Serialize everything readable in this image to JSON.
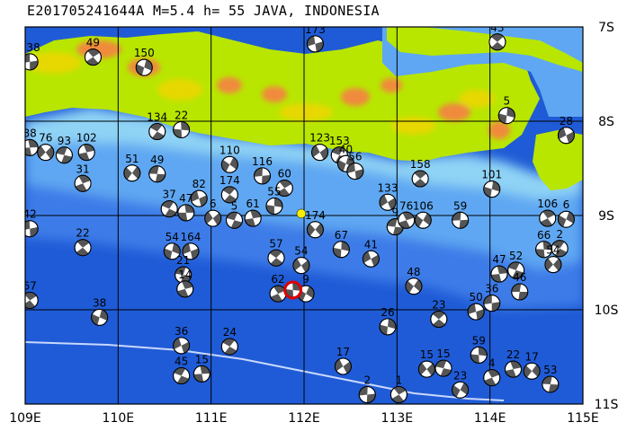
{
  "title": "E201705241644A M=5.4 h= 55 JAVA, INDONESIA",
  "lon_ticks": [
    "109E",
    "110E",
    "111E",
    "112E",
    "113E",
    "114E",
    "115E"
  ],
  "lat_ticks": [
    "7S",
    "8S",
    "9S",
    "10S",
    "11S"
  ],
  "lon_range": [
    109,
    115
  ],
  "lat_range": [
    -7,
    -11
  ],
  "colors": {
    "deep_ocean": "#1f5bd6",
    "mid_ocean": "#3c7ce8",
    "shelf": "#5fa7f2",
    "coast": "#8fd3f5",
    "land_low": "#b8e600",
    "land_mid": "#e6d800",
    "land_high": "#f08a3c",
    "trench_line": "#c9d8ff",
    "mainshock": "#e00000",
    "epicenter": "#ffee00"
  },
  "mainshock": {
    "lon": 111.88,
    "lat": -9.79
  },
  "epicenter": {
    "lon": 111.97,
    "lat": -8.98
  },
  "events": [
    {
      "label": "138",
      "lon": 109.05,
      "lat": -7.37
    },
    {
      "label": "49",
      "lon": 109.73,
      "lat": -7.32
    },
    {
      "label": "150",
      "lon": 110.28,
      "lat": -7.43
    },
    {
      "label": "173",
      "lon": 112.12,
      "lat": -7.18
    },
    {
      "label": "43",
      "lon": 114.08,
      "lat": -7.16
    },
    {
      "label": "5",
      "lon": 114.18,
      "lat": -7.94
    },
    {
      "label": "28",
      "lon": 114.82,
      "lat": -8.15
    },
    {
      "label": "134",
      "lon": 110.42,
      "lat": -8.11
    },
    {
      "label": "22",
      "lon": 110.68,
      "lat": -8.09
    },
    {
      "label": "123",
      "lon": 112.17,
      "lat": -8.33
    },
    {
      "label": "153",
      "lon": 112.38,
      "lat": -8.36
    },
    {
      "label": "88",
      "lon": 109.05,
      "lat": -8.28
    },
    {
      "label": "76",
      "lon": 109.22,
      "lat": -8.33
    },
    {
      "label": "93",
      "lon": 109.42,
      "lat": -8.36
    },
    {
      "label": "102",
      "lon": 109.66,
      "lat": -8.33
    },
    {
      "label": "51",
      "lon": 110.15,
      "lat": -8.55
    },
    {
      "label": "49",
      "lon": 110.42,
      "lat": -8.56
    },
    {
      "label": "31",
      "lon": 109.62,
      "lat": -8.66
    },
    {
      "label": "110",
      "lon": 111.2,
      "lat": -8.46
    },
    {
      "label": "116",
      "lon": 111.55,
      "lat": -8.58
    },
    {
      "label": "60",
      "lon": 111.79,
      "lat": -8.71
    },
    {
      "label": "40",
      "lon": 112.45,
      "lat": -8.45
    },
    {
      "label": "56",
      "lon": 112.55,
      "lat": -8.53
    },
    {
      "label": "158",
      "lon": 113.25,
      "lat": -8.61
    },
    {
      "label": "101",
      "lon": 114.02,
      "lat": -8.72
    },
    {
      "label": "82",
      "lon": 110.87,
      "lat": -8.82
    },
    {
      "label": "174",
      "lon": 111.2,
      "lat": -8.78
    },
    {
      "label": "55",
      "lon": 111.68,
      "lat": -8.9
    },
    {
      "label": "133",
      "lon": 112.9,
      "lat": -8.86
    },
    {
      "label": "37",
      "lon": 110.55,
      "lat": -8.93
    },
    {
      "label": "47",
      "lon": 110.73,
      "lat": -8.97
    },
    {
      "label": "6",
      "lon": 111.02,
      "lat": -9.03
    },
    {
      "label": "5",
      "lon": 111.25,
      "lat": -9.05
    },
    {
      "label": "61",
      "lon": 111.45,
      "lat": -9.03
    },
    {
      "label": "174",
      "lon": 112.12,
      "lat": -9.15
    },
    {
      "label": "9",
      "lon": 112.98,
      "lat": -9.12
    },
    {
      "label": "76",
      "lon": 113.1,
      "lat": -9.05
    },
    {
      "label": "106",
      "lon": 113.28,
      "lat": -9.05
    },
    {
      "label": "59",
      "lon": 113.68,
      "lat": -9.05
    },
    {
      "label": "106",
      "lon": 114.62,
      "lat": -9.03
    },
    {
      "label": "6",
      "lon": 114.82,
      "lat": -9.04
    },
    {
      "label": "42",
      "lon": 109.05,
      "lat": -9.14
    },
    {
      "label": "22",
      "lon": 109.62,
      "lat": -9.34
    },
    {
      "label": "54",
      "lon": 110.58,
      "lat": -9.38
    },
    {
      "label": "164",
      "lon": 110.78,
      "lat": -9.38
    },
    {
      "label": "57",
      "lon": 111.7,
      "lat": -9.45
    },
    {
      "label": "67",
      "lon": 112.4,
      "lat": -9.36
    },
    {
      "label": "41",
      "lon": 112.72,
      "lat": -9.46
    },
    {
      "label": "2",
      "lon": 114.75,
      "lat": -9.35
    },
    {
      "label": "66",
      "lon": 114.58,
      "lat": -9.36
    },
    {
      "label": "54",
      "lon": 111.97,
      "lat": -9.53
    },
    {
      "label": "52",
      "lon": 114.28,
      "lat": -9.58
    },
    {
      "label": "47",
      "lon": 114.1,
      "lat": -9.62
    },
    {
      "label": "54",
      "lon": 114.68,
      "lat": -9.52
    },
    {
      "label": "21",
      "lon": 110.7,
      "lat": -9.63
    },
    {
      "label": "14",
      "lon": 110.72,
      "lat": -9.78
    },
    {
      "label": "48",
      "lon": 113.18,
      "lat": -9.75
    },
    {
      "label": "46",
      "lon": 114.32,
      "lat": -9.81
    },
    {
      "label": "62",
      "lon": 111.72,
      "lat": -9.83
    },
    {
      "label": "9",
      "lon": 112.02,
      "lat": -9.83
    },
    {
      "label": "36",
      "lon": 114.02,
      "lat": -9.93
    },
    {
      "label": "67",
      "lon": 109.05,
      "lat": -9.9
    },
    {
      "label": "38",
      "lon": 109.8,
      "lat": -10.08
    },
    {
      "label": "50",
      "lon": 113.85,
      "lat": -10.02
    },
    {
      "label": "23",
      "lon": 113.45,
      "lat": -10.1
    },
    {
      "label": "26",
      "lon": 112.9,
      "lat": -10.18
    },
    {
      "label": "36",
      "lon": 110.68,
      "lat": -10.38
    },
    {
      "label": "24",
      "lon": 111.2,
      "lat": -10.39
    },
    {
      "label": "59",
      "lon": 113.88,
      "lat": -10.48
    },
    {
      "label": "17",
      "lon": 112.42,
      "lat": -10.6
    },
    {
      "label": "45",
      "lon": 110.68,
      "lat": -10.7
    },
    {
      "label": "15",
      "lon": 110.9,
      "lat": -10.68
    },
    {
      "label": "15",
      "lon": 113.32,
      "lat": -10.63
    },
    {
      "label": "15",
      "lon": 113.5,
      "lat": -10.62
    },
    {
      "label": "22",
      "lon": 114.25,
      "lat": -10.63
    },
    {
      "label": "17",
      "lon": 114.45,
      "lat": -10.65
    },
    {
      "label": "53",
      "lon": 114.65,
      "lat": -10.79
    },
    {
      "label": "4",
      "lon": 114.02,
      "lat": -10.72
    },
    {
      "label": "23",
      "lon": 113.68,
      "lat": -10.85
    },
    {
      "label": "2",
      "lon": 112.68,
      "lat": -10.9
    },
    {
      "label": "1",
      "lon": 113.02,
      "lat": -10.9
    }
  ]
}
